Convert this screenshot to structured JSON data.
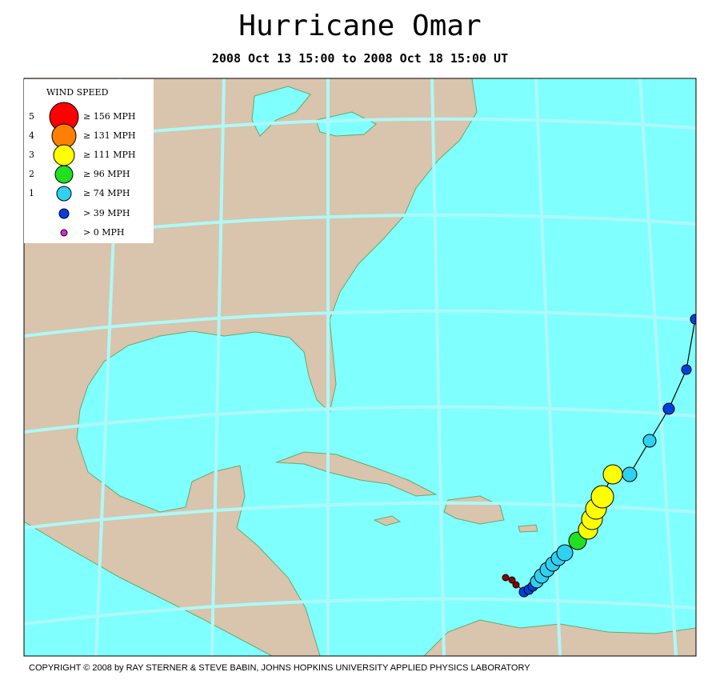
{
  "header": {
    "title": "Hurricane Omar",
    "subtitle": "2008 Oct 13 15:00 to 2008 Oct 18 15:00 UT"
  },
  "legend": {
    "title": "WIND SPEED",
    "items": [
      {
        "category": "5",
        "label": "≥ 156 MPH"
      },
      {
        "category": "4",
        "label": "≥ 131 MPH"
      },
      {
        "category": "3",
        "label": "≥ 111 MPH"
      },
      {
        "category": "2",
        "label": "≥ 96 MPH"
      },
      {
        "category": "1",
        "label": "≥ 74 MPH"
      },
      {
        "label": "> 39 MPH"
      },
      {
        "label": "> 0 MPH"
      }
    ]
  },
  "footer": "COPYRIGHT © 2008 by RAY STERNER & STEVE BABIN, JOHNS HOPKINS UNIVERSITY APPLIED PHYSICS LABORATORY"
}
